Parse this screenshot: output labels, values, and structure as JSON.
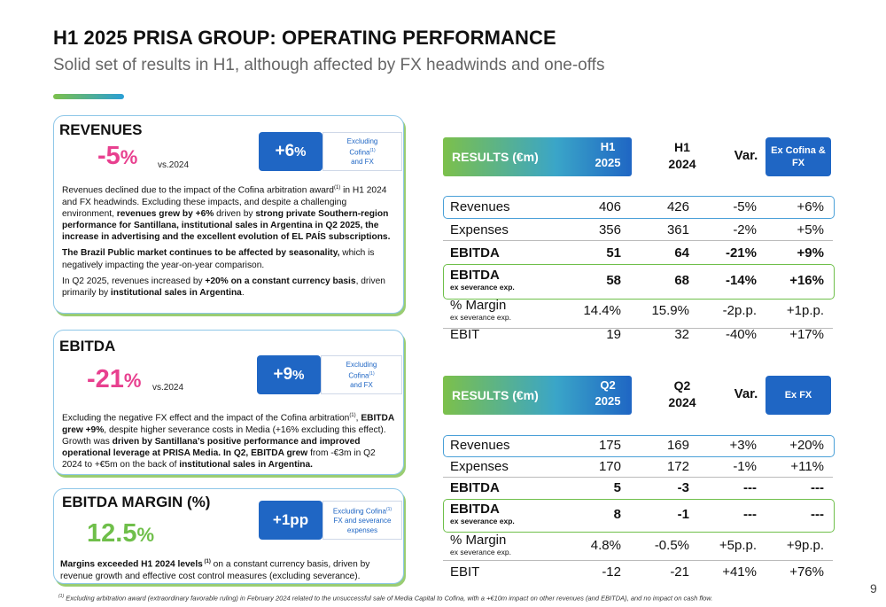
{
  "header": {
    "title": "H1 2025 PRISA GROUP: OPERATING PERFORMANCE",
    "subtitle": "Solid set of results in H1, although affected by FX headwinds and one-offs"
  },
  "revenues_card": {
    "title": "REVENUES",
    "value_num": "-5",
    "value_unit": "%",
    "vs": "vs.2024",
    "badge_num": "+6",
    "badge_unit": "%",
    "badge_note_a": "Excluding",
    "badge_note_b": "Cofina",
    "badge_note_sup": "(1)",
    "badge_note_c": "and FX",
    "p1_a": "Revenues declined due to the impact of the Cofina arbitration award",
    "p1_sup": "(1)",
    "p1_b": " in H1 2024 and FX headwinds. Excluding these impacts, and despite a challenging environment, ",
    "p1_c": "revenues grew by +6%",
    "p1_d": " driven by ",
    "p1_e": "strong private Southern-region performance for Santillana, institutional sales in Argentina in Q2 2025, the increase in advertising and the excellent evolution of EL PAÍS subscriptions.",
    "p2_a": "The Brazil Public market continues to be affected by seasonality,",
    "p2_b": " which is negatively impacting the year-on-year comparison.",
    "p3_a": "In Q2 2025, revenues increased by ",
    "p3_b": "+20% on a constant currency basis",
    "p3_c": ", driven primarily by ",
    "p3_d": "institutional sales in Argentina",
    "p3_e": "."
  },
  "ebitda_card": {
    "title": "EBITDA",
    "value_num": "-21",
    "value_unit": "%",
    "vs": "vs.2024",
    "badge_num": "+9",
    "badge_unit": "%",
    "badge_note_a": "Excluding",
    "badge_note_b": "Cofina",
    "badge_note_sup": "(1)",
    "badge_note_c": "and FX",
    "p1_a": "Excluding the negative FX effect and the impact of the Cofina arbitration",
    "p1_sup": "(1)",
    "p1_b": ", ",
    "p1_c": "EBITDA grew +9%",
    "p1_d": ", despite higher severance costs in Media (+16% excluding this effect). Growth was ",
    "p1_e": "driven by Santillana’s positive performance and improved operational leverage at PRISA Media.",
    "p1_f": " ",
    "p1_g": "In Q2, EBITDA grew",
    "p1_h": " from -€3m in Q2 2024 to +€5m on the back of ",
    "p1_i": "institutional sales in Argentina."
  },
  "margin_card": {
    "title": "EBITDA MARGIN (%)",
    "value_num": "12.5",
    "value_unit": "%",
    "badge": "+1pp",
    "badge_note_a": "Excluding Cofina",
    "badge_note_sup": "(1)",
    "badge_note_b": "FX and severance expenses",
    "p1_a": "Margins exceeded H1 2024 levels",
    "p1_sup": " (1)",
    "p1_b": " on a constant currency basis, driven by revenue growth and effective cost control measures (excluding severance)."
  },
  "table_h1": {
    "label": "RESULTS (€m)",
    "col1_a": "H1",
    "col1_b": "2025",
    "col2_a": "H1",
    "col2_b": "2024",
    "col3": "Var.",
    "col4": "Ex Cofina  & FX",
    "rows": [
      {
        "label": "Revenues",
        "sub": "",
        "c1": "406",
        "c2": "426",
        "c3": "-5%",
        "c4": "+6%"
      },
      {
        "label": "Expenses",
        "sub": "",
        "c1": "356",
        "c2": "361",
        "c3": "-2%",
        "c4": "+5%"
      },
      {
        "label": "EBITDA",
        "sub": "",
        "c1": "51",
        "c2": "64",
        "c3": "-21%",
        "c4": "+9%"
      },
      {
        "label": "EBITDA",
        "sub": "ex severance exp.",
        "c1": "58",
        "c2": "68",
        "c3": "-14%",
        "c4": "+16%"
      },
      {
        "label": "% Margin",
        "sub": "ex severance exp.",
        "c1": "14.4%",
        "c2": "15.9%",
        "c3": "-2p.p.",
        "c4": "+1p.p."
      },
      {
        "label": "EBIT",
        "sub": "",
        "c1": "19",
        "c2": "32",
        "c3": "-40%",
        "c4": "+17%"
      }
    ]
  },
  "table_q2": {
    "label": "RESULTS (€m)",
    "col1_a": "Q2",
    "col1_b": "2025",
    "col2_a": "Q2",
    "col2_b": "2024",
    "col3": "Var.",
    "col4": "Ex FX",
    "rows": [
      {
        "label": "Revenues",
        "sub": "",
        "c1": "175",
        "c2": "169",
        "c3": "+3%",
        "c4": "+20%"
      },
      {
        "label": "Expenses",
        "sub": "",
        "c1": "170",
        "c2": "172",
        "c3": "-1%",
        "c4": "+11%"
      },
      {
        "label": "EBITDA",
        "sub": "",
        "c1": "5",
        "c2": "-3",
        "c3": "---",
        "c4": "---"
      },
      {
        "label": "EBITDA",
        "sub": "ex severance exp.",
        "c1": "8",
        "c2": "-1",
        "c3": "---",
        "c4": "---"
      },
      {
        "label": "% Margin",
        "sub": "ex severance exp.",
        "c1": "4.8%",
        "c2": "-0.5%",
        "c3": "+5p.p.",
        "c4": "+9p.p."
      },
      {
        "label": "EBIT",
        "sub": "",
        "c1": "-12",
        "c2": "-21",
        "c3": "+41%",
        "c4": "+76%"
      }
    ]
  },
  "footer": {
    "footnote_sup": "(1)",
    "footnote": " Excluding arbitration award (extraordinary favorable ruling) in February 2024 related to the unsuccessful sale of Media Capital to Cofina, with a +€10m impact on other revenues (and EBITDA), and no impact on cash flow.",
    "page": "9"
  },
  "colors": {
    "pink": "#e8408f",
    "green": "#6fbf4a",
    "blue": "#1f66c4"
  }
}
